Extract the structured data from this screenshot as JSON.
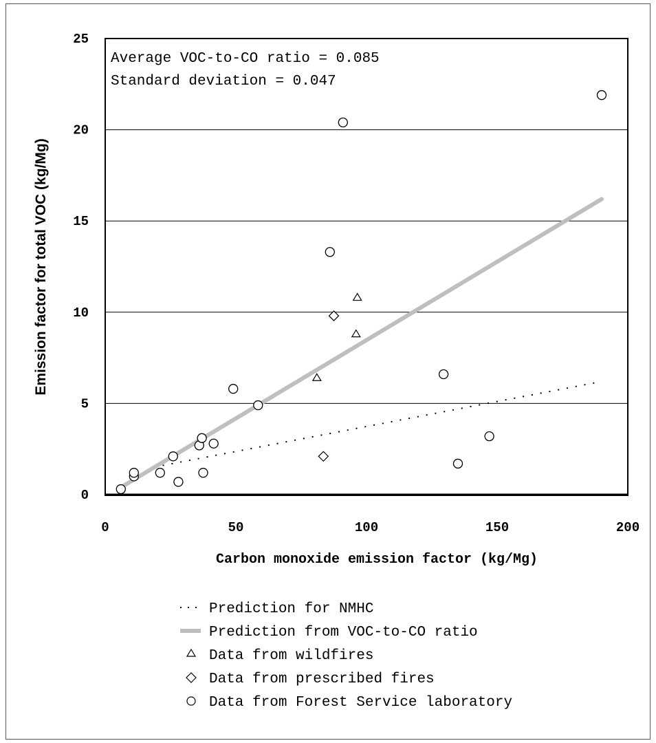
{
  "chart_data": {
    "type": "scatter",
    "xlabel": "Carbon monoxide emission factor (kg/Mg)",
    "ylabel": "Emission factor for total VOC (kg/Mg)",
    "xlim": [
      0,
      200
    ],
    "ylim": [
      0,
      25
    ],
    "x_ticks": [
      0,
      50,
      100,
      150,
      200
    ],
    "y_ticks": [
      0,
      5,
      10,
      15,
      20,
      25
    ],
    "grid": "horizontal",
    "legend_position": "below",
    "annotations": [
      "Average VOC-to-CO ratio = 0.085",
      "Standard deviation = 0.047"
    ],
    "series": [
      {
        "name": "Prediction for NMHC",
        "style": "dotted-line",
        "color": "#000000",
        "points": [
          [
            22,
            1.6
          ],
          [
            190,
            6.2
          ]
        ]
      },
      {
        "name": "Prediction from VOC-to-CO ratio",
        "style": "thick-line",
        "color": "#bfbfbf",
        "points": [
          [
            6,
            0.4
          ],
          [
            190,
            16.2
          ]
        ]
      },
      {
        "name": "Data from wildfires",
        "marker": "triangle",
        "points": [
          [
            81,
            6.4
          ],
          [
            96,
            8.8
          ],
          [
            96.5,
            10.8
          ]
        ]
      },
      {
        "name": "Data from prescribed fires",
        "marker": "diamond",
        "points": [
          [
            83.5,
            2.1
          ],
          [
            87.5,
            9.8
          ]
        ]
      },
      {
        "name": "Data from Forest Service laboratory",
        "marker": "circle",
        "points": [
          [
            6,
            0.3
          ],
          [
            11,
            1.0
          ],
          [
            11,
            1.2
          ],
          [
            21,
            1.2
          ],
          [
            26,
            2.1
          ],
          [
            28,
            0.7
          ],
          [
            36,
            2.7
          ],
          [
            37,
            3.1
          ],
          [
            37.5,
            1.2
          ],
          [
            41.5,
            2.8
          ],
          [
            49,
            5.8
          ],
          [
            58.5,
            4.9
          ],
          [
            86,
            13.3
          ],
          [
            91,
            20.4
          ],
          [
            129.5,
            6.6
          ],
          [
            135,
            1.7
          ],
          [
            147,
            3.2
          ],
          [
            190,
            21.9
          ]
        ]
      }
    ]
  },
  "legend": [
    {
      "label": "Prediction for NMHC",
      "symbol": "dotted-line-icon"
    },
    {
      "label": "Prediction from VOC-to-CO ratio",
      "symbol": "thick-gray-line-icon"
    },
    {
      "label": "Data from wildfires",
      "symbol": "triangle-icon"
    },
    {
      "label": "Data from prescribed fires",
      "symbol": "diamond-icon"
    },
    {
      "label": "Data from Forest Service laboratory",
      "symbol": "circle-icon"
    }
  ]
}
